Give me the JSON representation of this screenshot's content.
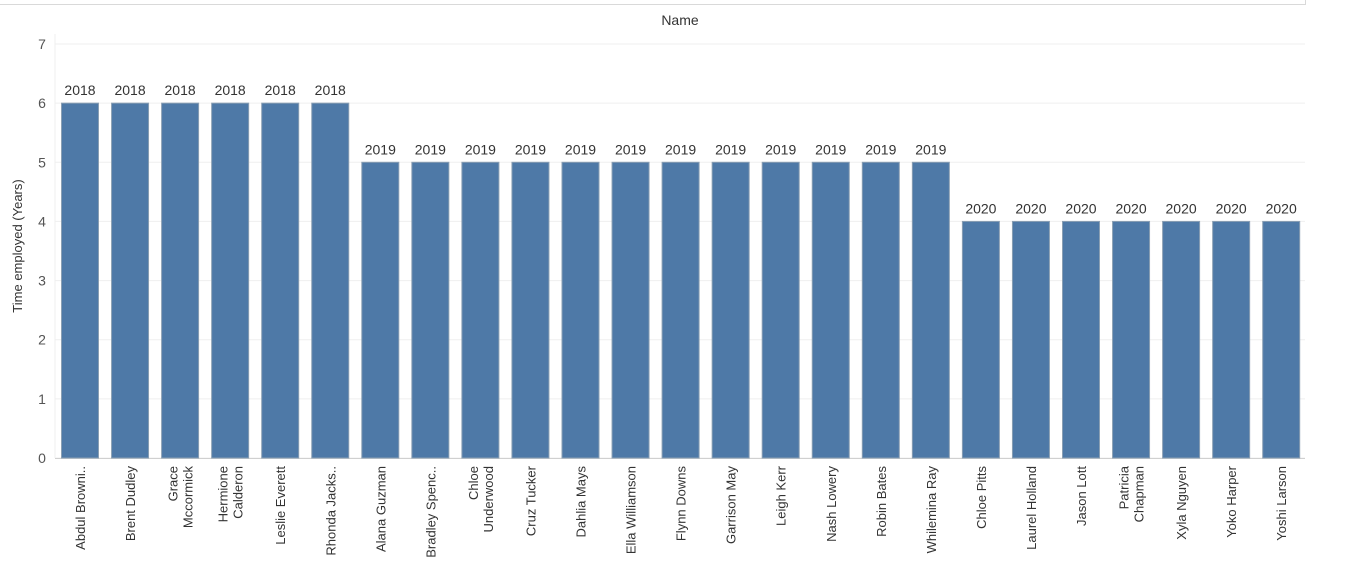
{
  "header": {
    "title": "Name"
  },
  "colors": {
    "bar": "#4e79a7",
    "bar_stroke": "#8a9fb3",
    "grid": "#efefef",
    "axis": "#d0d0d0"
  },
  "chart_data": {
    "type": "bar",
    "title": "",
    "xlabel": "Name",
    "ylabel": "Time employed (Years)",
    "ylim": [
      0,
      7
    ],
    "yticks": [
      0,
      1,
      2,
      3,
      4,
      5,
      6,
      7
    ],
    "grid": true,
    "categories": [
      [
        "Abdul Browni.."
      ],
      [
        "Brent Dudley"
      ],
      [
        "Grace",
        "Mccormick"
      ],
      [
        "Hermione",
        "Calderon"
      ],
      [
        "Leslie Everett"
      ],
      [
        "Rhonda Jacks.."
      ],
      [
        "Alana Guzman"
      ],
      [
        "Bradley Spenc.."
      ],
      [
        "Chloe",
        "Underwood"
      ],
      [
        "Cruz Tucker"
      ],
      [
        "Dahlia Mays"
      ],
      [
        "Ella Williamson"
      ],
      [
        "Flynn Downs"
      ],
      [
        "Garrison May"
      ],
      [
        "Leigh Kerr"
      ],
      [
        "Nash Lowery"
      ],
      [
        "Robin Bates"
      ],
      [
        "Whilemina Ray"
      ],
      [
        "Chloe Pitts"
      ],
      [
        "Laurel Holland"
      ],
      [
        "Jason Lott"
      ],
      [
        "Patricia",
        "Chapman"
      ],
      [
        "Xyla Nguyen"
      ],
      [
        "Yoko Harper"
      ],
      [
        "Yoshi Larson"
      ]
    ],
    "values": [
      6,
      6,
      6,
      6,
      6,
      6,
      5,
      5,
      5,
      5,
      5,
      5,
      5,
      5,
      5,
      5,
      5,
      5,
      4,
      4,
      4,
      4,
      4,
      4,
      4
    ],
    "data_labels": [
      "2018",
      "2018",
      "2018",
      "2018",
      "2018",
      "2018",
      "2019",
      "2019",
      "2019",
      "2019",
      "2019",
      "2019",
      "2019",
      "2019",
      "2019",
      "2019",
      "2019",
      "2019",
      "2020",
      "2020",
      "2020",
      "2020",
      "2020",
      "2020",
      "2020"
    ]
  }
}
